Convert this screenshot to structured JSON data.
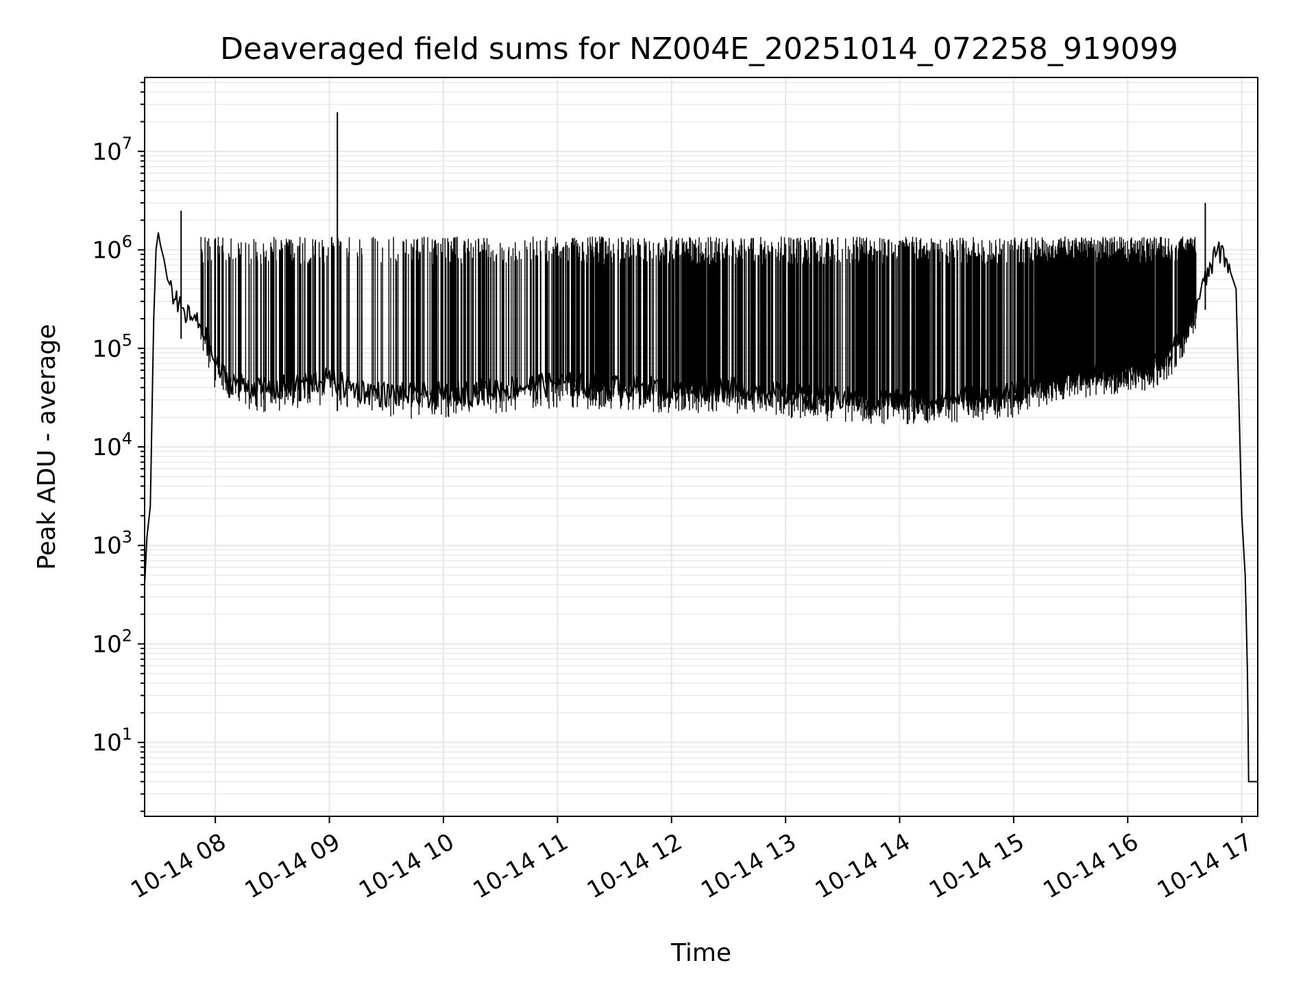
{
  "chart_data": {
    "type": "line",
    "title": "Deaveraged field sums for NZ004E_20251014_072258_919099",
    "xlabel": "Time",
    "ylabel": "Peak ADU - average",
    "yscale": "log",
    "ylim_exp": [
      0.25,
      7.75
    ],
    "xlim_hours": [
      7.38,
      17.14
    ],
    "grid": true,
    "line_color": "#000000",
    "grid_color": "#e6e6e6",
    "x_ticks": [
      {
        "label": "10-14 08",
        "hour": 8
      },
      {
        "label": "10-14 09",
        "hour": 9
      },
      {
        "label": "10-14 10",
        "hour": 10
      },
      {
        "label": "10-14 11",
        "hour": 11
      },
      {
        "label": "10-14 12",
        "hour": 12
      },
      {
        "label": "10-14 13",
        "hour": 13
      },
      {
        "label": "10-14 14",
        "hour": 14
      },
      {
        "label": "10-14 15",
        "hour": 15
      },
      {
        "label": "10-14 16",
        "hour": 16
      },
      {
        "label": "10-14 17",
        "hour": 17
      }
    ],
    "y_ticks": [
      {
        "base": "10",
        "exp": "1",
        "value": 10
      },
      {
        "base": "10",
        "exp": "2",
        "value": 100
      },
      {
        "base": "10",
        "exp": "3",
        "value": 1000
      },
      {
        "base": "10",
        "exp": "4",
        "value": 10000
      },
      {
        "base": "10",
        "exp": "5",
        "value": 100000
      },
      {
        "base": "10",
        "exp": "6",
        "value": 1000000
      },
      {
        "base": "10",
        "exp": "7",
        "value": 10000000
      }
    ],
    "series": [
      {
        "name": "field sums",
        "x_hours": [
          7.38,
          7.4,
          7.43,
          7.46,
          7.48,
          7.5,
          7.52,
          7.55,
          7.58,
          7.62,
          7.66,
          7.7,
          7.75,
          7.8,
          7.85,
          7.9,
          7.95,
          8.0,
          8.05,
          8.1,
          8.2,
          8.3,
          8.4,
          8.5,
          8.6,
          8.7,
          8.8,
          9.0,
          9.2,
          9.5,
          10.0,
          10.5,
          11.0,
          11.5,
          12.0,
          12.5,
          13.0,
          13.5,
          14.0,
          14.5,
          15.0,
          15.2,
          15.5,
          15.8,
          16.0,
          16.2,
          16.4,
          16.55,
          16.65,
          16.75,
          16.8,
          16.85,
          16.9,
          16.95,
          17.0,
          17.03,
          17.05,
          17.06,
          17.14
        ],
        "y_values": [
          400,
          1200,
          2500,
          200000,
          1000000,
          1500000,
          1100000,
          800000,
          500000,
          400000,
          300000,
          250000,
          220000,
          200000,
          180000,
          150000,
          100000,
          70000,
          60000,
          50000,
          45000,
          42000,
          40000,
          40000,
          42000,
          45000,
          45000,
          50000,
          40000,
          35000,
          35000,
          40000,
          45000,
          42000,
          40000,
          40000,
          35000,
          32000,
          30000,
          32000,
          35000,
          45000,
          55000,
          60000,
          65000,
          65000,
          100000,
          200000,
          400000,
          800000,
          1000000,
          900000,
          600000,
          400000,
          2000,
          500,
          50,
          4,
          4
        ]
      }
    ],
    "spikes": [
      {
        "x_hour": 7.7,
        "y_max": 2500000
      },
      {
        "x_hour": 9.07,
        "y_max": 25000000
      },
      {
        "x_hour": 16.68,
        "y_max": 3000000
      }
    ],
    "spike_band": {
      "x_start_hour": 7.85,
      "x_end_hour": 16.6,
      "y_top": 1300000
    }
  }
}
